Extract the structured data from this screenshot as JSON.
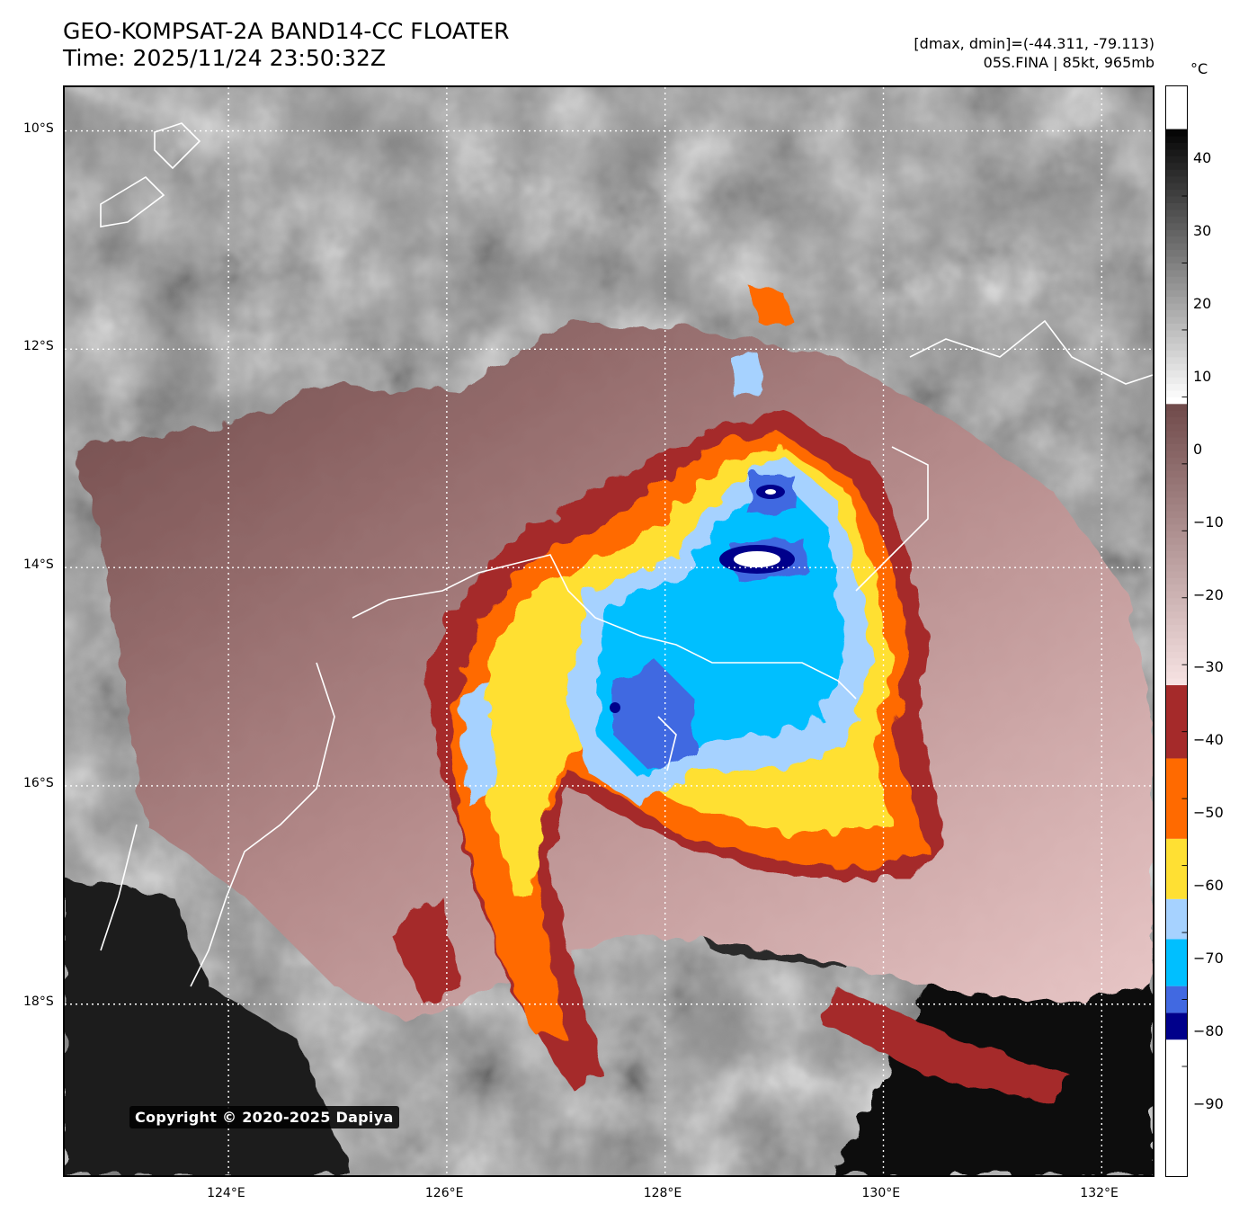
{
  "header": {
    "title_line1": "GEO-KOMPSAT-2A BAND14-CC FLOATER",
    "title_line2": "Time: 2025/11/24 23:50:32Z",
    "info_line1": "[dmax, dmin]=(-44.311, -79.113)",
    "info_line2": "05S.FINA | 85kt, 965mb"
  },
  "colorbar": {
    "unit": "°C",
    "ticks": [
      "40",
      "30",
      "20",
      "10",
      "0",
      "−10",
      "−20",
      "−30",
      "−40",
      "−50",
      "−60",
      "−70",
      "−80",
      "−90"
    ],
    "tick_values": [
      40,
      30,
      20,
      10,
      0,
      -10,
      -20,
      -30,
      -40,
      -50,
      -60,
      -70,
      -80,
      -90
    ],
    "range": [
      -100,
      50
    ],
    "bands": [
      {
        "from": -100,
        "to": -86,
        "color": "#ffffff"
      },
      {
        "from": -86,
        "to": -82,
        "color": "#00008b"
      },
      {
        "from": -82,
        "to": -78,
        "color": "#4169e1"
      },
      {
        "from": -78,
        "to": -71,
        "color": "#00bfff"
      },
      {
        "from": -71,
        "to": -65,
        "color": "#a6d2ff"
      },
      {
        "from": -65,
        "to": -56,
        "color": "#ffe033"
      },
      {
        "from": -56,
        "to": -44,
        "color": "#ff6a00"
      },
      {
        "from": -44,
        "to": -33,
        "color": "#a52a2a"
      },
      {
        "from": -33,
        "to": 9,
        "color": "gradient"
      },
      {
        "from": 9,
        "to": 50,
        "color": "grayscale"
      }
    ]
  },
  "map": {
    "lon_labels": [
      "124°E",
      "126°E",
      "128°E",
      "130°E",
      "132°E"
    ],
    "lon_values": [
      124,
      126,
      128,
      130,
      132
    ],
    "lat_labels": [
      "10°S",
      "12°S",
      "14°S",
      "16°S",
      "18°S"
    ],
    "lat_values": [
      -10,
      -12,
      -14,
      -16,
      -18
    ],
    "lon_range": [
      122.5,
      132.5
    ],
    "lat_range": [
      -9.6,
      -19.6
    ],
    "storm_name": "05S.FINA",
    "copyright": "Copyright © 2020-2025 Dapiya"
  }
}
